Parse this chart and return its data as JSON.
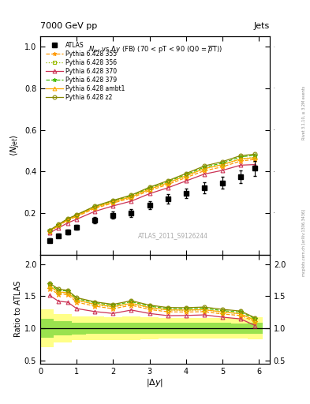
{
  "title_left": "7000 GeV pp",
  "title_right": "Jets",
  "plot_title": "N$_{jet}$ vs $\\Delta$y (FB) (70 < pT < 90 (Q0 =$\\overline{p}$T))",
  "watermark": "ATLAS_2011_S9126244",
  "ylabel_main": "$\\langle N_{jet}\\rangle$",
  "ylabel_ratio": "Ratio to ATLAS",
  "xlabel": "$|\\Delta y|$",
  "rivet_label": "Rivet 3.1.10, ≥ 3.2M events",
  "mcplots_label": "mcplots.cern.ch [arXiv:1306.3436]",
  "atlas_x": [
    0.25,
    0.5,
    0.75,
    1.0,
    1.5,
    2.0,
    2.5,
    3.0,
    3.5,
    4.0,
    4.5,
    5.0,
    5.5,
    5.9
  ],
  "atlas_y": [
    0.068,
    0.09,
    0.108,
    0.13,
    0.165,
    0.19,
    0.2,
    0.238,
    0.268,
    0.295,
    0.32,
    0.345,
    0.375,
    0.415
  ],
  "atlas_yerr": [
    0.01,
    0.01,
    0.012,
    0.012,
    0.015,
    0.017,
    0.018,
    0.02,
    0.022,
    0.024,
    0.026,
    0.028,
    0.03,
    0.035
  ],
  "mc_x": [
    0.25,
    0.5,
    0.75,
    1.0,
    1.5,
    2.0,
    2.5,
    3.0,
    3.5,
    4.0,
    4.5,
    5.0,
    5.5,
    5.9
  ],
  "mc355_y": [
    0.11,
    0.138,
    0.165,
    0.183,
    0.222,
    0.248,
    0.272,
    0.308,
    0.337,
    0.37,
    0.403,
    0.422,
    0.45,
    0.458
  ],
  "mc356_y": [
    0.112,
    0.14,
    0.168,
    0.187,
    0.226,
    0.253,
    0.277,
    0.314,
    0.344,
    0.378,
    0.412,
    0.432,
    0.46,
    0.468
  ],
  "mc370_y": [
    0.103,
    0.128,
    0.152,
    0.17,
    0.208,
    0.234,
    0.257,
    0.293,
    0.321,
    0.354,
    0.387,
    0.405,
    0.43,
    0.433
  ],
  "mc379_y": [
    0.115,
    0.143,
    0.171,
    0.19,
    0.231,
    0.258,
    0.283,
    0.32,
    0.351,
    0.385,
    0.42,
    0.44,
    0.47,
    0.478
  ],
  "mc_ambt1_y": [
    0.113,
    0.141,
    0.168,
    0.187,
    0.227,
    0.254,
    0.278,
    0.315,
    0.345,
    0.379,
    0.413,
    0.433,
    0.46,
    0.466
  ],
  "mc_z2_y": [
    0.116,
    0.145,
    0.172,
    0.192,
    0.233,
    0.261,
    0.286,
    0.324,
    0.355,
    0.39,
    0.426,
    0.447,
    0.476,
    0.483
  ],
  "mc355_color": "#ff9900",
  "mc356_color": "#99bb00",
  "mc370_color": "#cc3355",
  "mc379_color": "#44bb00",
  "mc_ambt1_color": "#ffaa00",
  "mc_z2_color": "#888800",
  "xlim": [
    0.0,
    6.3
  ],
  "ylim_main": [
    0.0,
    1.05
  ],
  "ylim_ratio": [
    0.45,
    2.15
  ],
  "yticks_main": [
    0.2,
    0.4,
    0.6,
    0.8,
    1.0
  ],
  "yticks_ratio": [
    0.5,
    1.0,
    1.5,
    2.0
  ]
}
